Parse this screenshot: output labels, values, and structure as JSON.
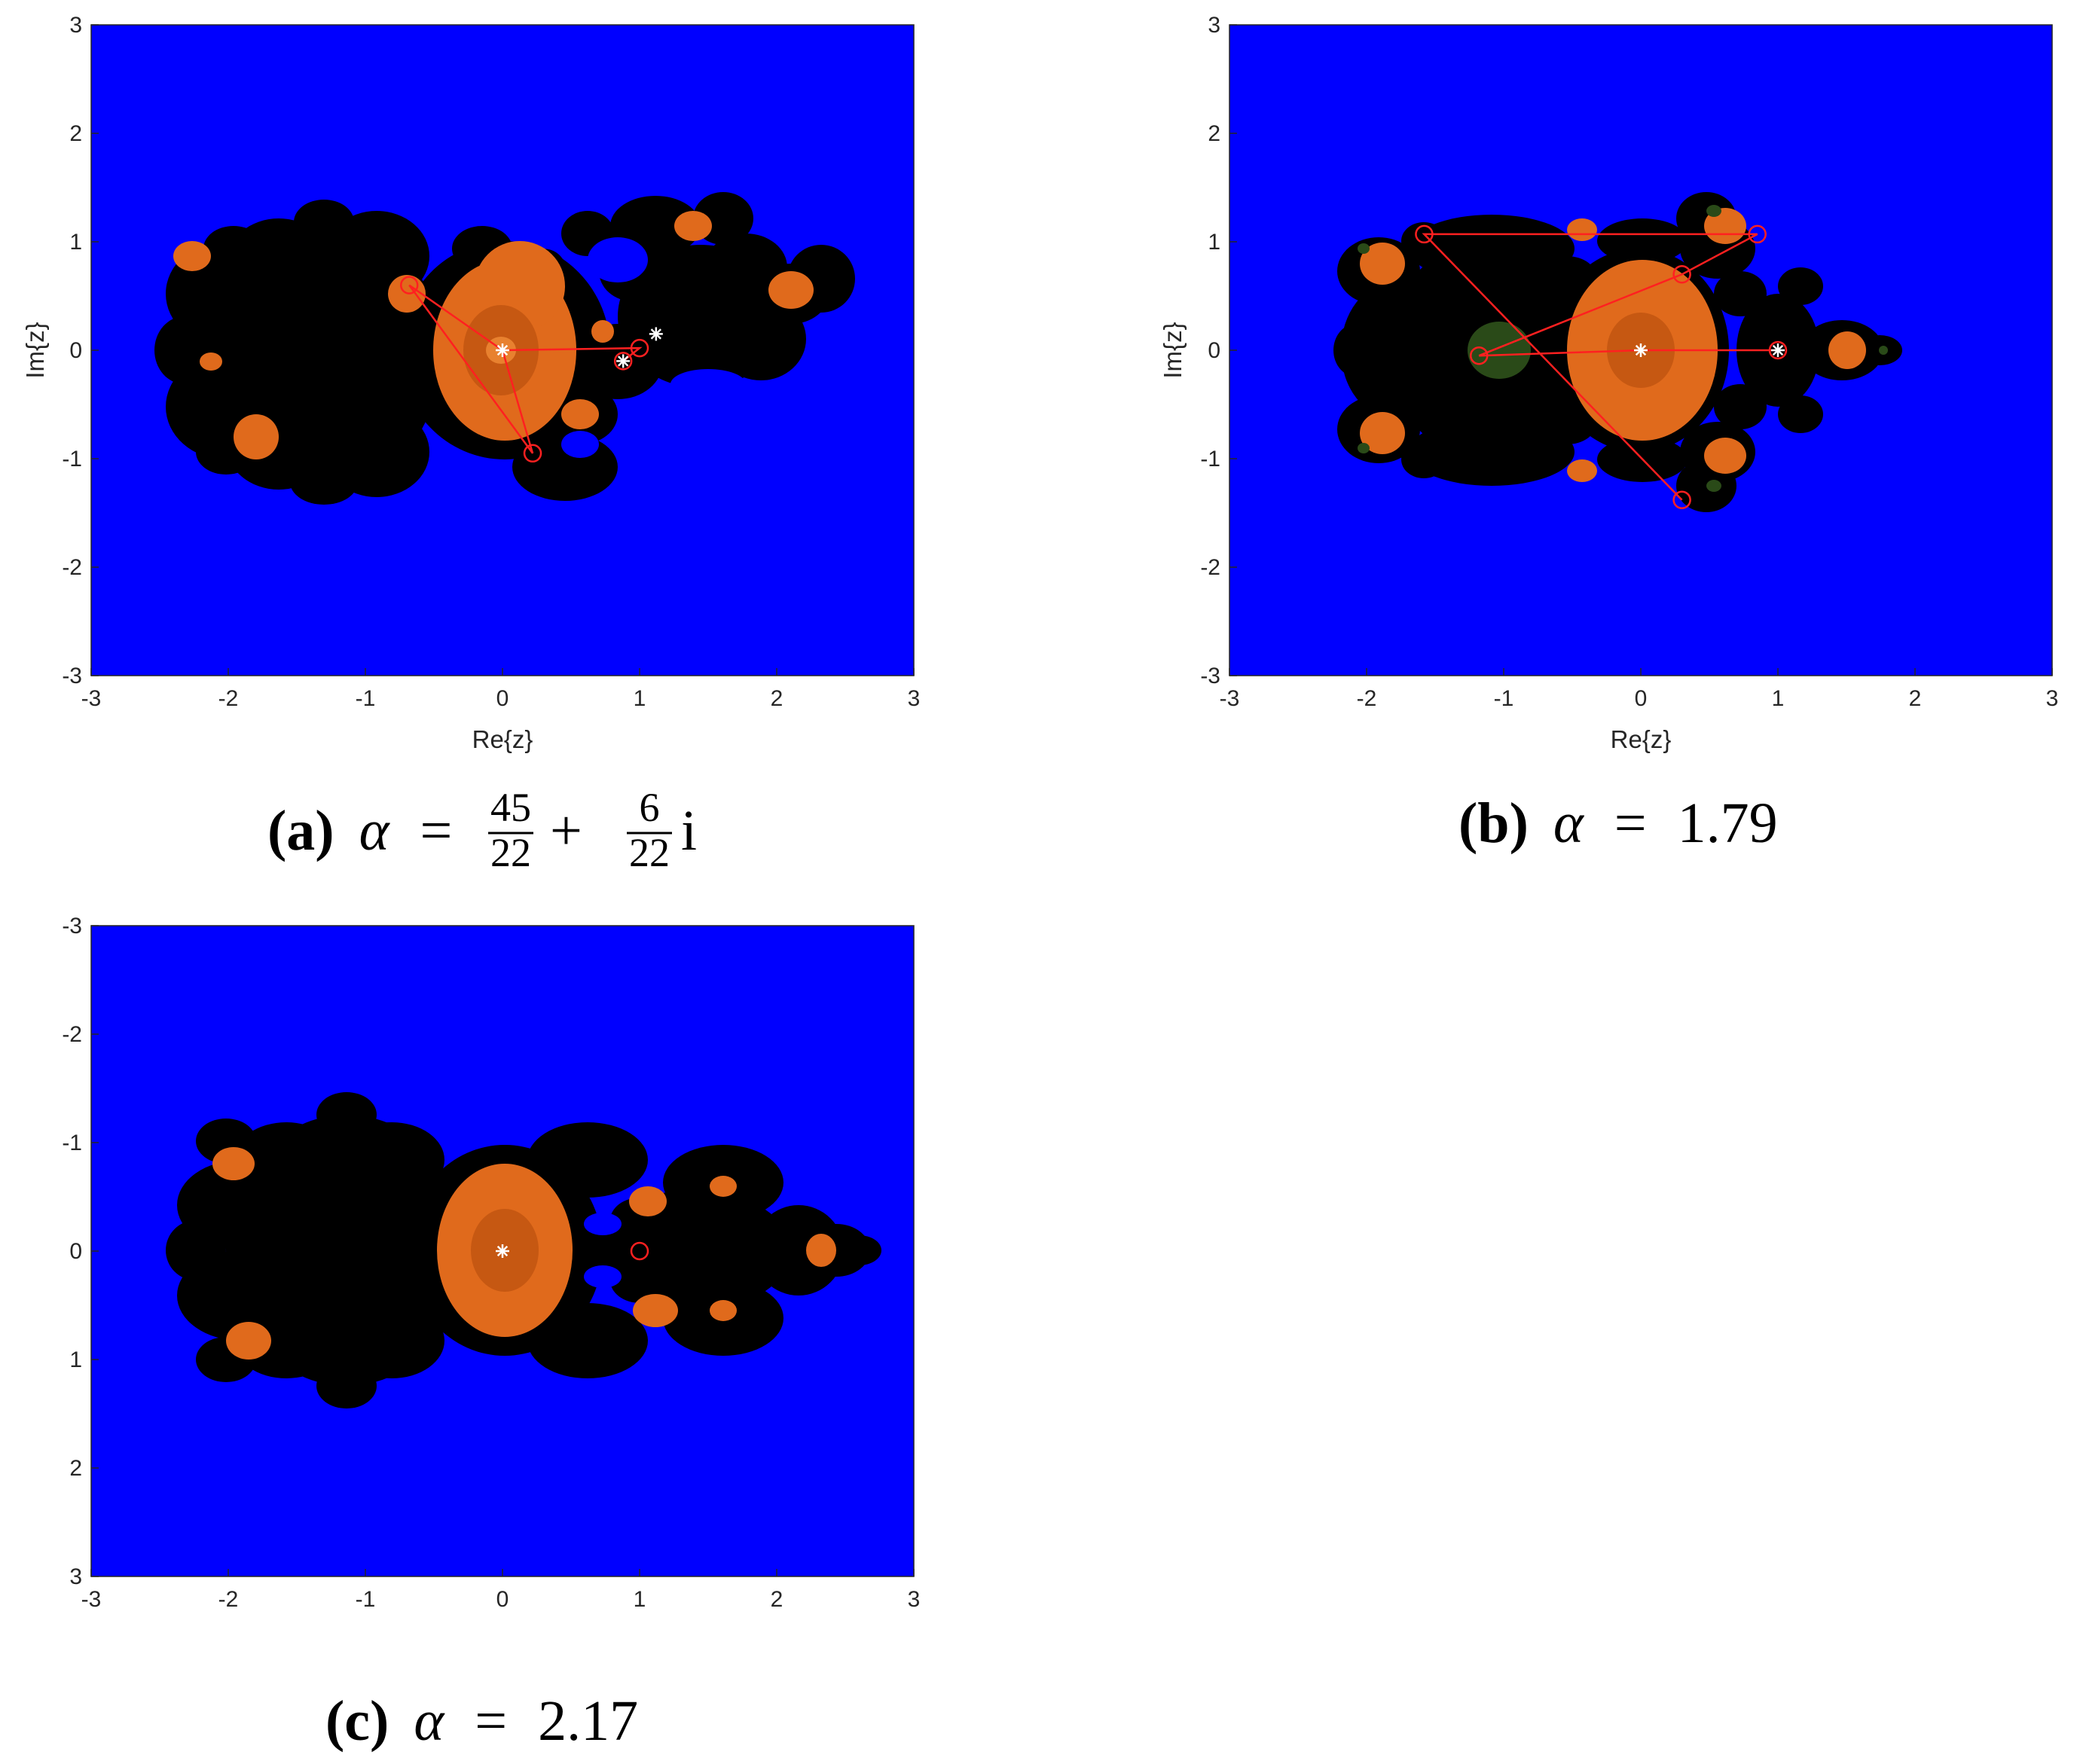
{
  "chart_data": [
    {
      "id": "a",
      "type": "heatmap",
      "caption": {
        "letter": "(a)",
        "symbol": "α",
        "equals": "=",
        "frac1_num": "45",
        "frac1_den": "22",
        "plus": "+",
        "frac2_num": "6",
        "frac2_den": "22",
        "suffix": "i"
      },
      "xlabel": "Re{z}",
      "ylabel": "Im{z}",
      "xlim": [
        -3,
        3
      ],
      "ylim": [
        -3,
        3
      ],
      "y_direction": "normal",
      "xticks": [
        "-3",
        "-2",
        "-1",
        "0",
        "1",
        "2",
        "3"
      ],
      "yticks": [
        "-3",
        "-2",
        "-1",
        "0",
        "1",
        "2",
        "3"
      ],
      "colors": {
        "background": "#0000ff",
        "julia": "#000000",
        "basin": "#e06a1c",
        "basin_dark": "#c65812",
        "orbit": "#ff2020",
        "fixed": "#ffffff"
      },
      "orbit": [
        [
          0,
          0
        ],
        [
          -0.68,
          0.6
        ],
        [
          0.22,
          -0.95
        ],
        [
          0,
          0
        ],
        [
          1.0,
          0.02
        ],
        [
          0.88,
          -0.1
        ]
      ],
      "orbit_circles": [
        [
          -0.68,
          0.6
        ],
        [
          0.22,
          -0.95
        ],
        [
          1.0,
          0.02
        ],
        [
          0.88,
          -0.1
        ]
      ],
      "fixed_points": [
        [
          0,
          0
        ],
        [
          0.88,
          -0.1
        ],
        [
          1.12,
          0.15
        ]
      ]
    },
    {
      "id": "b",
      "type": "heatmap",
      "caption": {
        "letter": "(b)",
        "symbol": "α",
        "equals": "=",
        "value": "1.79"
      },
      "xlabel": "Re{z}",
      "ylabel": "Im{z}",
      "xlim": [
        -3,
        3
      ],
      "ylim": [
        -3,
        3
      ],
      "y_direction": "normal",
      "xticks": [
        "-3",
        "-2",
        "-1",
        "0",
        "1",
        "2",
        "3"
      ],
      "yticks": [
        "-3",
        "-2",
        "-1",
        "0",
        "1",
        "2",
        "3"
      ],
      "colors": {
        "background": "#0000ff",
        "julia": "#000000",
        "basin": "#e06a1c",
        "basin_dark": "#c65812",
        "green_basin": "#2a4a18",
        "orbit": "#ff2020",
        "fixed": "#ffffff"
      },
      "orbit": [
        [
          0,
          0
        ],
        [
          1.0,
          0
        ],
        [
          0,
          0
        ],
        [
          -1.18,
          -0.05
        ],
        [
          0.3,
          0.7
        ],
        [
          0.85,
          1.07
        ],
        [
          -1.58,
          1.07
        ],
        [
          0.3,
          -1.38
        ]
      ],
      "orbit_circles": [
        [
          1.0,
          0
        ],
        [
          -1.18,
          -0.05
        ],
        [
          0.3,
          0.7
        ],
        [
          0.85,
          1.07
        ],
        [
          -1.58,
          1.07
        ],
        [
          0.3,
          -1.38
        ]
      ],
      "fixed_points": [
        [
          0,
          0
        ],
        [
          1.0,
          0
        ]
      ]
    },
    {
      "id": "c",
      "type": "heatmap",
      "caption": {
        "letter": "(c)",
        "symbol": "α",
        "equals": "=",
        "value": "2.17"
      },
      "xlabel": "",
      "ylabel": "",
      "xlim": [
        -3,
        3
      ],
      "ylim": [
        -3,
        3
      ],
      "y_direction": "reverse",
      "xticks": [
        "-3",
        "-2",
        "-1",
        "0",
        "1",
        "2",
        "3"
      ],
      "yticks": [
        "-3",
        "-2",
        "-1",
        "0",
        "1",
        "2",
        "3"
      ],
      "colors": {
        "background": "#0000ff",
        "julia": "#000000",
        "basin": "#e06a1c",
        "basin_dark": "#c65812",
        "orbit": "#ff2020",
        "fixed": "#ffffff"
      },
      "orbit": [],
      "orbit_circles": [
        [
          1.0,
          0
        ]
      ],
      "fixed_points": [
        [
          0,
          0
        ]
      ]
    }
  ]
}
